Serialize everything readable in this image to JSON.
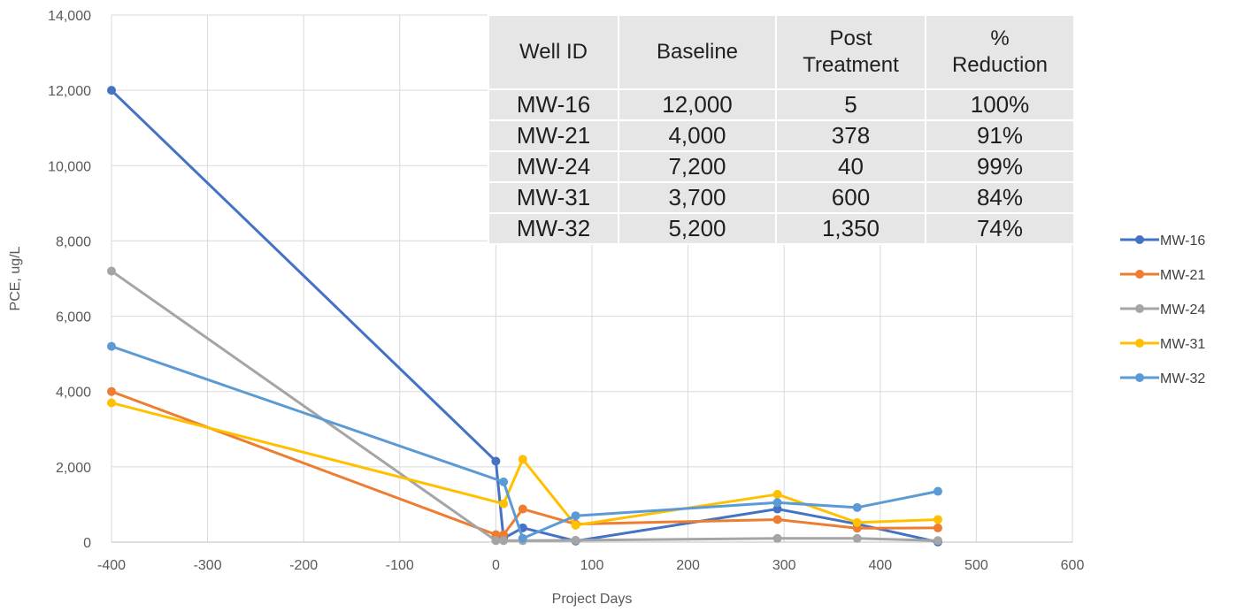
{
  "chart_data": {
    "type": "line",
    "title": "",
    "xlabel": "Project Days",
    "ylabel": "PCE, ug/L",
    "xlim": [
      -400,
      600
    ],
    "ylim": [
      0,
      14000
    ],
    "x_ticks": [
      -400,
      -300,
      -200,
      -100,
      0,
      100,
      200,
      300,
      400,
      500,
      600
    ],
    "y_ticks": [
      0,
      2000,
      4000,
      6000,
      8000,
      10000,
      12000,
      14000
    ],
    "x_tick_labels": [
      "-400",
      "-300",
      "-200",
      "-100",
      "0",
      "100",
      "200",
      "300",
      "400",
      "500",
      "600"
    ],
    "y_tick_labels": [
      "0",
      "2,000",
      "4,000",
      "6,000",
      "8,000",
      "10,000",
      "12,000",
      "14,000"
    ],
    "grid": true,
    "legend_position": "right",
    "series": [
      {
        "name": "MW-16",
        "color": "#4472c4",
        "points": [
          [
            -400,
            12000
          ],
          [
            0,
            2150
          ],
          [
            8,
            100
          ],
          [
            28,
            380
          ],
          [
            83,
            30
          ],
          [
            293,
            880
          ],
          [
            376,
            480
          ],
          [
            460,
            5
          ]
        ]
      },
      {
        "name": "MW-21",
        "color": "#ed7d31",
        "points": [
          [
            -400,
            4000
          ],
          [
            0,
            200
          ],
          [
            8,
            200
          ],
          [
            28,
            880
          ],
          [
            83,
            480
          ],
          [
            293,
            600
          ],
          [
            376,
            370
          ],
          [
            460,
            378
          ]
        ]
      },
      {
        "name": "MW-24",
        "color": "#a5a5a5",
        "points": [
          [
            -400,
            7200
          ],
          [
            0,
            40
          ],
          [
            8,
            40
          ],
          [
            28,
            40
          ],
          [
            83,
            50
          ],
          [
            293,
            100
          ],
          [
            376,
            100
          ],
          [
            460,
            40
          ]
        ]
      },
      {
        "name": "MW-31",
        "color": "#ffc000",
        "points": [
          [
            -400,
            3700
          ],
          [
            8,
            1020
          ],
          [
            28,
            2200
          ],
          [
            83,
            450
          ],
          [
            293,
            1270
          ],
          [
            376,
            520
          ],
          [
            460,
            600
          ]
        ]
      },
      {
        "name": "MW-32",
        "color": "#5b9bd5",
        "points": [
          [
            -400,
            5200
          ],
          [
            8,
            1600
          ],
          [
            28,
            100
          ],
          [
            83,
            700
          ],
          [
            293,
            1050
          ],
          [
            376,
            920
          ],
          [
            460,
            1350
          ]
        ]
      }
    ]
  },
  "table": {
    "headers": [
      [
        "Well ID"
      ],
      [
        "Baseline"
      ],
      [
        "Post",
        "Treatment"
      ],
      [
        "%",
        "Reduction"
      ]
    ],
    "rows": [
      [
        "MW-16",
        "12,000",
        "5",
        "100%"
      ],
      [
        "MW-21",
        "4,000",
        "378",
        "91%"
      ],
      [
        "MW-24",
        "7,200",
        "40",
        "99%"
      ],
      [
        "MW-31",
        "3,700",
        "600",
        "84%"
      ],
      [
        "MW-32",
        "5,200",
        "1,350",
        "74%"
      ]
    ]
  }
}
